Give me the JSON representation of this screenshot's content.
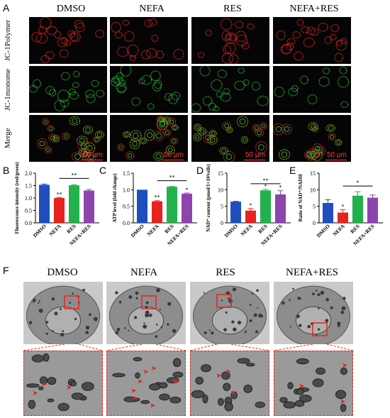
{
  "panel_letters": {
    "A": "A",
    "B": "B",
    "C": "C",
    "D": "D",
    "E": "E",
    "F": "F"
  },
  "groups": [
    "DMSO",
    "NEFA",
    "RES",
    "NEFA+RES"
  ],
  "fluorescence": {
    "rows": [
      "JC-1Polymer",
      "JC-1monome",
      "Merge"
    ],
    "scale_label": "50 μm"
  },
  "tem": {
    "groups": [
      "DMSO",
      "NEFA",
      "RES",
      "NEFA+RES"
    ]
  },
  "colors": {
    "DMSO": "#1f4fbf",
    "NEFA": "#e8231e",
    "RES": "#22b14c",
    "NEFA+RES": "#8e44ad",
    "red_stain": "#ff2a2a",
    "green_stain": "#2ecc40"
  },
  "chart_data": [
    {
      "type": "bar",
      "panel": "B",
      "categories": [
        "DMSO",
        "NEFA",
        "RES",
        "NEFA+RES"
      ],
      "values": [
        1.53,
        1.0,
        1.51,
        1.3
      ],
      "errors": [
        0.03,
        0.02,
        0.02,
        0.04
      ],
      "ylabel": "Fluorescence intensity (red/green)",
      "ylim": [
        0,
        2.0
      ],
      "yticks": [
        "0.0",
        "0.5",
        "1.0",
        "1.5",
        "2.0"
      ],
      "sig": [
        "",
        "**",
        "",
        ""
      ],
      "bracket": "**"
    },
    {
      "type": "bar",
      "panel": "C",
      "categories": [
        "DMSO",
        "NEFA",
        "RES",
        "NEFA+RES"
      ],
      "values": [
        1.0,
        0.65,
        1.09,
        0.88
      ],
      "errors": [
        0.0,
        0.02,
        0.01,
        0.02
      ],
      "ylabel": "ATP level (fold change)",
      "ylim": [
        0,
        1.5
      ],
      "yticks": [
        "0.0",
        "0.5",
        "1.0",
        "1.5"
      ],
      "sig": [
        "",
        "**",
        "",
        "*"
      ],
      "bracket": "**"
    },
    {
      "type": "bar",
      "panel": "D",
      "categories": [
        "DMSO",
        "NEFA",
        "RES",
        "NEFA+RES"
      ],
      "values": [
        6.4,
        3.7,
        9.8,
        8.6
      ],
      "errors": [
        0.1,
        0.6,
        0.3,
        1.1
      ],
      "ylabel": "NAD⁺ content (pmol/1×10⁴cells)",
      "ylim": [
        0,
        15
      ],
      "yticks": [
        "0",
        "5",
        "10",
        "15"
      ],
      "sig": [
        "",
        "*",
        "*",
        "*"
      ],
      "bracket": "**"
    },
    {
      "type": "bar",
      "panel": "E",
      "categories": [
        "DMSO",
        "NEFA",
        "RES",
        "NEFA+RES"
      ],
      "values": [
        6.0,
        3.1,
        8.2,
        7.6
      ],
      "errors": [
        1.0,
        0.9,
        1.2,
        0.8
      ],
      "ylabel": "Ratio of NAD⁺/NADH",
      "ylim": [
        0,
        15
      ],
      "yticks": [
        "0",
        "5",
        "10",
        "15"
      ],
      "sig": [
        "",
        "*",
        "",
        ""
      ],
      "bracket": "*"
    }
  ]
}
